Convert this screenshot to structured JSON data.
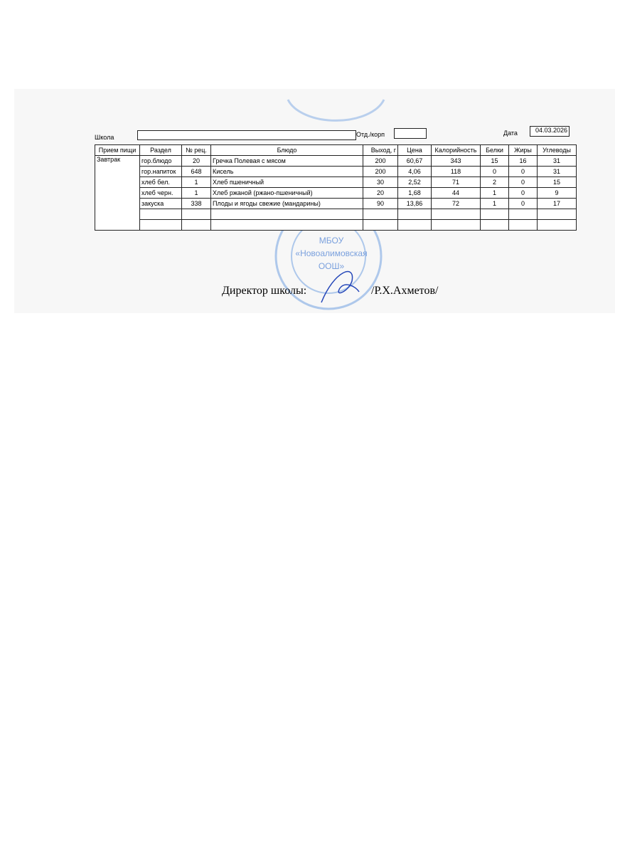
{
  "header": {
    "school_label": "Школа",
    "department_label": "Отд./корп",
    "date_label": "Дата",
    "date": "04.03.2026"
  },
  "table": {
    "columns": [
      "Прием пищи",
      "Раздел",
      "№ рец.",
      "Блюдо",
      "Выход, г",
      "Цена",
      "Калорийность",
      "Белки",
      "Жиры",
      "Углеводы"
    ],
    "meal": "Завтрак",
    "rows": [
      [
        "гор.блюдо",
        "20",
        "Гречка Полевая с мясом",
        "200",
        "60,67",
        "343",
        "15",
        "16",
        "31"
      ],
      [
        "гор.напиток",
        "648",
        "Кисель",
        "200",
        "4,06",
        "118",
        "0",
        "0",
        "31"
      ],
      [
        "хлеб бел.",
        "1",
        "Хлеб пшеничный",
        "30",
        "2,52",
        "71",
        "2",
        "0",
        "15"
      ],
      [
        "хлеб черн.",
        "1",
        "Хлеб ржаной (ржано-пшеничный)",
        "20",
        "1,68",
        "44",
        "1",
        "0",
        "9"
      ],
      [
        "закуска",
        "338",
        "Плоды и ягоды свежие (мандарины)",
        "90",
        "13,86",
        "72",
        "1",
        "0",
        "17"
      ]
    ]
  },
  "stamp": {
    "line1": "МБОУ",
    "line2": "«Новоалимовская",
    "line3": "ООШ»"
  },
  "signature": {
    "label": "Директор школы:",
    "name": "/Р.Х.Ахметов/"
  }
}
